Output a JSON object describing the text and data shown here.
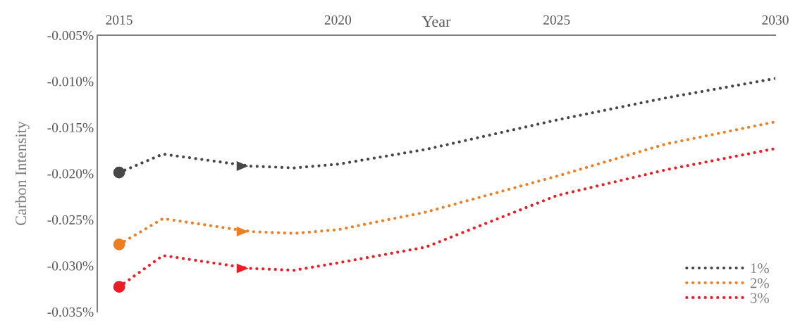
{
  "chart_data": {
    "type": "line",
    "xlabel": "Year",
    "ylabel": "Carbon Intensity",
    "x": [
      2015,
      2016,
      2018,
      2019,
      2020,
      2022,
      2025,
      2027.5,
      2030
    ],
    "series": [
      {
        "name": "1%",
        "color": "#474747",
        "values": [
          -0.0199,
          -0.0179,
          -0.0192,
          -0.0194,
          -0.019,
          -0.0174,
          -0.0142,
          -0.0118,
          -0.0097
        ]
      },
      {
        "name": "2%",
        "color": "#ef7d22",
        "values": [
          -0.0277,
          -0.0249,
          -0.0263,
          -0.0265,
          -0.0261,
          -0.0242,
          -0.0203,
          -0.0168,
          -0.0144
        ]
      },
      {
        "name": "3%",
        "color": "#ee1c25",
        "values": [
          -0.0323,
          -0.0289,
          -0.0303,
          -0.0305,
          -0.0297,
          -0.028,
          -0.0224,
          -0.0196,
          -0.0173
        ]
      }
    ],
    "xlim": [
      2014.5,
      2030
    ],
    "xticks": [
      2015,
      2020,
      2025,
      2030
    ],
    "ylim": [
      -0.035,
      -0.005
    ],
    "yticks": [
      {
        "value": -0.035,
        "label": "-0.035%"
      },
      {
        "value": -0.03,
        "label": "-0.030%"
      },
      {
        "value": -0.025,
        "label": "-0.025%"
      },
      {
        "value": -0.02,
        "label": "-0.020%"
      },
      {
        "value": -0.015,
        "label": "-0.015%"
      },
      {
        "value": -0.01,
        "label": "-0.010%"
      },
      {
        "value": -0.005,
        "label": "-0.005%"
      }
    ],
    "grid": false,
    "legend": "bottom right",
    "line_style": "dotted"
  }
}
